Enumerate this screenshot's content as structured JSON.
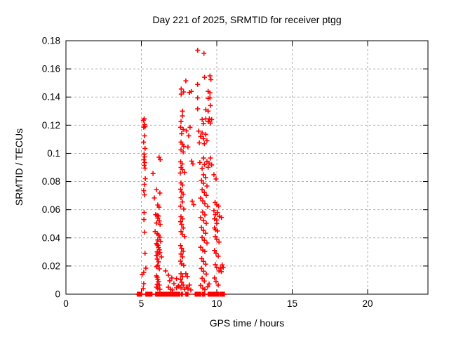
{
  "chart": {
    "title": "Day 221 of 2025, SRMTID for receiver ptgg",
    "xlabel": "GPS time / hours",
    "ylabel": "SRMTID / TECUs"
  },
  "chart_data": {
    "type": "scatter",
    "title": "Day 221 of 2025, SRMTID for receiver ptgg",
    "xlabel": "GPS time / hours",
    "ylabel": "SRMTID / TECUs",
    "xlim": [
      0,
      24
    ],
    "ylim": [
      0,
      0.18
    ],
    "x_ticks": [
      0,
      5,
      10,
      15,
      20
    ],
    "x_tick_labels": [
      "0",
      "5",
      "10",
      "15",
      "20"
    ],
    "y_ticks": [
      0,
      0.02,
      0.04,
      0.06,
      0.08,
      0.1,
      0.12,
      0.14,
      0.16,
      0.18
    ],
    "y_tick_labels": [
      "0",
      "0.02",
      "0.04",
      "0.06",
      "0.08",
      "0.1",
      "0.12",
      "0.14",
      "0.16",
      "0.18"
    ],
    "grid": true,
    "legend": "none",
    "marker": {
      "shape": "plus",
      "color": "#ff0000",
      "size": 7,
      "stroke_width": 1.6
    },
    "axis_color": "#000000",
    "grid_color": "#b0b0b0",
    "background": "#ffffff",
    "series": [
      {
        "name": "SRMTID",
        "points": [
          [
            5.13,
            0.1235
          ],
          [
            5.19,
            0.1245
          ],
          [
            5.21,
            0.1205
          ],
          [
            5.16,
            0.1185
          ],
          [
            5.24,
            0.119
          ],
          [
            5.22,
            0.1125
          ],
          [
            5.15,
            0.108
          ],
          [
            5.24,
            0.1035
          ],
          [
            5.18,
            0.0995
          ],
          [
            5.22,
            0.0975
          ],
          [
            5.17,
            0.0955
          ],
          [
            5.23,
            0.0935
          ],
          [
            5.19,
            0.0915
          ],
          [
            5.24,
            0.0895
          ],
          [
            5.26,
            0.082
          ],
          [
            5.2,
            0.078
          ],
          [
            5.16,
            0.0735
          ],
          [
            5.21,
            0.0705
          ],
          [
            5.18,
            0.058
          ],
          [
            5.17,
            0.053
          ],
          [
            5.21,
            0.044
          ],
          [
            5.24,
            0.029
          ],
          [
            5.3,
            0.0185
          ],
          [
            5.16,
            0.0155
          ],
          [
            5.05,
            0.014
          ],
          [
            5.16,
            0.0075
          ],
          [
            5.12,
            0.004
          ],
          [
            5.77,
            0.0857
          ],
          [
            6.17,
            0.0973
          ],
          [
            6.25,
            0.0955
          ],
          [
            6.0,
            0.0743
          ],
          [
            6.23,
            0.0718
          ],
          [
            5.86,
            0.0683
          ],
          [
            6.09,
            0.0633
          ],
          [
            6.17,
            0.0618
          ],
          [
            6.05,
            0.056
          ],
          [
            6.14,
            0.0555
          ],
          [
            6.09,
            0.054
          ],
          [
            6.19,
            0.052
          ],
          [
            6.0,
            0.0505
          ],
          [
            6.24,
            0.0495
          ],
          [
            5.95,
            0.0565
          ],
          [
            6.05,
            0.043
          ],
          [
            6.14,
            0.042
          ],
          [
            6.23,
            0.0405
          ],
          [
            6.09,
            0.0385
          ],
          [
            6.28,
            0.0375
          ],
          [
            5.91,
            0.0445
          ],
          [
            6.0,
            0.036
          ],
          [
            6.05,
            0.035
          ],
          [
            6.1,
            0.0345
          ],
          [
            6.14,
            0.033
          ],
          [
            6.19,
            0.0315
          ],
          [
            6.05,
            0.03
          ],
          [
            6.09,
            0.0285
          ],
          [
            6.0,
            0.0275
          ],
          [
            6.23,
            0.0295
          ],
          [
            6.33,
            0.0265
          ],
          [
            6.05,
            0.025
          ],
          [
            6.14,
            0.023
          ],
          [
            6.09,
            0.0205
          ],
          [
            6.19,
            0.018
          ],
          [
            6.0,
            0.0195
          ],
          [
            6.0,
            0.013
          ],
          [
            6.05,
            0.012
          ],
          [
            6.09,
            0.0105
          ],
          [
            6.14,
            0.009
          ],
          [
            6.05,
            0.007
          ],
          [
            6.0,
            0.005
          ],
          [
            6.09,
            0.004
          ],
          [
            6.19,
            0.0065
          ],
          [
            6.23,
            0.0035
          ],
          [
            6.6,
            0.0165
          ],
          [
            6.79,
            0.0135
          ],
          [
            7.02,
            0.0115
          ],
          [
            7.33,
            0.011
          ],
          [
            7.16,
            0.0075
          ],
          [
            6.79,
            0.005
          ],
          [
            6.93,
            0.0035
          ],
          [
            7.33,
            0.0045
          ],
          [
            7.44,
            0.006
          ],
          [
            7.05,
            0.003
          ],
          [
            7.49,
            0.0055
          ],
          [
            6.88,
            0.0095
          ],
          [
            7.95,
            0.1515
          ],
          [
            7.64,
            0.1457
          ],
          [
            7.8,
            0.1436
          ],
          [
            8.19,
            0.1432
          ],
          [
            7.64,
            0.1421
          ],
          [
            7.72,
            0.13
          ],
          [
            7.72,
            0.1266
          ],
          [
            7.63,
            0.1226
          ],
          [
            7.6,
            0.1185
          ],
          [
            7.77,
            0.117
          ],
          [
            7.98,
            0.116
          ],
          [
            7.67,
            0.114
          ],
          [
            8.14,
            0.1125
          ],
          [
            8.23,
            0.1185
          ],
          [
            7.63,
            0.108
          ],
          [
            7.72,
            0.1065
          ],
          [
            7.81,
            0.105
          ],
          [
            7.63,
            0.1025
          ],
          [
            7.77,
            0.101
          ],
          [
            8.09,
            0.1045
          ],
          [
            7.6,
            0.094
          ],
          [
            7.7,
            0.0925
          ],
          [
            7.63,
            0.09
          ],
          [
            7.72,
            0.0885
          ],
          [
            7.86,
            0.0865
          ],
          [
            7.58,
            0.086
          ],
          [
            8.33,
            0.0945
          ],
          [
            8.42,
            0.0925
          ],
          [
            7.63,
            0.079
          ],
          [
            7.72,
            0.0775
          ],
          [
            7.6,
            0.0745
          ],
          [
            7.67,
            0.0725
          ],
          [
            7.77,
            0.071
          ],
          [
            7.63,
            0.0685
          ],
          [
            7.72,
            0.0655
          ],
          [
            7.6,
            0.0625
          ],
          [
            7.81,
            0.0605
          ],
          [
            8.37,
            0.066
          ],
          [
            8.47,
            0.0635
          ],
          [
            7.63,
            0.055
          ],
          [
            7.72,
            0.0535
          ],
          [
            7.6,
            0.0515
          ],
          [
            7.67,
            0.0495
          ],
          [
            7.77,
            0.047
          ],
          [
            7.63,
            0.0445
          ],
          [
            7.72,
            0.0425
          ],
          [
            7.86,
            0.041
          ],
          [
            7.6,
            0.0345
          ],
          [
            7.67,
            0.0325
          ],
          [
            7.77,
            0.0305
          ],
          [
            7.63,
            0.0285
          ],
          [
            7.72,
            0.0265
          ],
          [
            7.6,
            0.0235
          ],
          [
            7.67,
            0.0215
          ],
          [
            7.81,
            0.0205
          ],
          [
            7.63,
            0.0145
          ],
          [
            7.72,
            0.0125
          ],
          [
            7.6,
            0.0105
          ],
          [
            7.67,
            0.0085
          ],
          [
            7.77,
            0.0065
          ],
          [
            7.63,
            0.0045
          ],
          [
            7.86,
            0.0035
          ],
          [
            8.0,
            0.005
          ],
          [
            8.09,
            0.004
          ],
          [
            8.19,
            0.0065
          ],
          [
            8.28,
            0.003
          ],
          [
            7.95,
            0.0145
          ],
          [
            8.05,
            0.0125
          ],
          [
            8.73,
            0.1732
          ],
          [
            9.15,
            0.171
          ],
          [
            9.55,
            0.155
          ],
          [
            9.19,
            0.154
          ],
          [
            9.61,
            0.1524
          ],
          [
            8.73,
            0.149
          ],
          [
            9.43,
            0.144
          ],
          [
            8.31,
            0.144
          ],
          [
            9.55,
            0.143
          ],
          [
            9.43,
            0.139
          ],
          [
            8.73,
            0.1394
          ],
          [
            9.55,
            0.1394
          ],
          [
            9.58,
            0.134
          ],
          [
            9.27,
            0.131
          ],
          [
            9.43,
            0.13
          ],
          [
            8.73,
            0.1316
          ],
          [
            9.03,
            0.124
          ],
          [
            9.27,
            0.1245
          ],
          [
            9.5,
            0.1245
          ],
          [
            9.66,
            0.124
          ],
          [
            9.43,
            0.1225
          ],
          [
            9.58,
            0.1215
          ],
          [
            9.12,
            0.1212
          ],
          [
            8.8,
            0.1158
          ],
          [
            9.03,
            0.1145
          ],
          [
            9.27,
            0.1135
          ],
          [
            8.93,
            0.112
          ],
          [
            9.12,
            0.1105
          ],
          [
            9.35,
            0.109
          ],
          [
            8.84,
            0.1075
          ],
          [
            9.17,
            0.1068
          ],
          [
            9.12,
            0.0967
          ],
          [
            9.58,
            0.0967
          ],
          [
            9.35,
            0.0942
          ],
          [
            9.49,
            0.0931
          ],
          [
            9.19,
            0.0921
          ],
          [
            9.66,
            0.0918
          ],
          [
            9.43,
            0.0901
          ],
          [
            9.03,
            0.0892
          ],
          [
            8.88,
            0.0935
          ],
          [
            9.12,
            0.0848
          ],
          [
            9.26,
            0.0828
          ],
          [
            8.98,
            0.0808
          ],
          [
            9.12,
            0.0788
          ],
          [
            9.35,
            0.0768
          ],
          [
            9.03,
            0.0742
          ],
          [
            9.17,
            0.0722
          ],
          [
            9.3,
            0.0702
          ],
          [
            8.93,
            0.0682
          ],
          [
            9.07,
            0.0662
          ],
          [
            9.21,
            0.0642
          ],
          [
            9.4,
            0.0622
          ],
          [
            9.07,
            0.0583
          ],
          [
            9.21,
            0.0563
          ],
          [
            8.93,
            0.0543
          ],
          [
            9.12,
            0.0523
          ],
          [
            9.3,
            0.0503
          ],
          [
            8.98,
            0.0473
          ],
          [
            9.12,
            0.0453
          ],
          [
            9.26,
            0.0433
          ],
          [
            9.03,
            0.0403
          ],
          [
            9.17,
            0.0383
          ],
          [
            9.35,
            0.0363
          ],
          [
            8.93,
            0.0333
          ],
          [
            9.07,
            0.0313
          ],
          [
            9.21,
            0.0303
          ],
          [
            9.0,
            0.0253
          ],
          [
            9.12,
            0.0233
          ],
          [
            9.26,
            0.0213
          ],
          [
            8.98,
            0.0183
          ],
          [
            9.12,
            0.0163
          ],
          [
            9.3,
            0.0143
          ],
          [
            9.03,
            0.0113
          ],
          [
            9.17,
            0.0093
          ],
          [
            8.93,
            0.0063
          ],
          [
            9.07,
            0.0043
          ],
          [
            9.21,
            0.0033
          ],
          [
            9.4,
            0.0053
          ],
          [
            9.49,
            0.0073
          ],
          [
            9.81,
            0.0848
          ],
          [
            9.95,
            0.0818
          ],
          [
            9.89,
            0.0651
          ],
          [
            10.0,
            0.0634
          ],
          [
            10.12,
            0.0626
          ],
          [
            9.81,
            0.0593
          ],
          [
            10.05,
            0.058
          ],
          [
            9.9,
            0.0565
          ],
          [
            10.17,
            0.0553
          ],
          [
            9.85,
            0.0535
          ],
          [
            10.0,
            0.0527
          ],
          [
            10.31,
            0.0545
          ],
          [
            9.85,
            0.047
          ],
          [
            10.05,
            0.0449
          ],
          [
            10.0,
            0.0502
          ],
          [
            9.92,
            0.0457
          ],
          [
            9.9,
            0.041
          ],
          [
            10.0,
            0.039
          ],
          [
            10.15,
            0.037
          ],
          [
            9.85,
            0.031
          ],
          [
            9.95,
            0.029
          ],
          [
            10.1,
            0.027
          ],
          [
            10.36,
            0.0208
          ],
          [
            10.43,
            0.0191
          ],
          [
            9.9,
            0.021
          ],
          [
            10.0,
            0.019
          ],
          [
            10.15,
            0.0165
          ],
          [
            10.25,
            0.0185
          ],
          [
            9.85,
            0.0115
          ],
          [
            9.95,
            0.009
          ],
          [
            10.1,
            0.0065
          ],
          [
            10.3,
            0.016
          ]
        ],
        "zero_line": {
          "y": 0,
          "segments": [
            [
              4.74,
              5.04
            ],
            [
              5.3,
              5.72
            ],
            [
              5.95,
              7.58
            ],
            [
              8.57,
              8.96
            ],
            [
              9.43,
              10.12
            ],
            [
              10.2,
              10.36
            ]
          ],
          "step": 0.04,
          "singles": [
            7.66,
            7.72,
            7.95,
            8.0,
            8.05,
            8.09,
            9.04,
            9.1,
            9.16,
            9.2,
            10.42,
            10.46,
            10.5
          ]
        }
      }
    ]
  }
}
